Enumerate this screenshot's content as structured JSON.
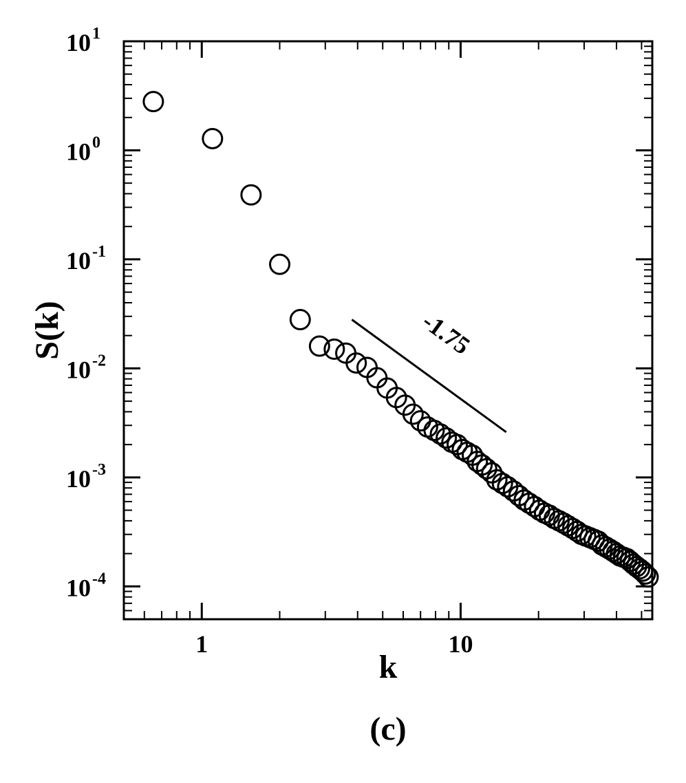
{
  "chart_data": {
    "type": "scatter",
    "xlabel": "k",
    "ylabel": "S(k)",
    "panel_label": "(c)",
    "xscale": "log",
    "yscale": "log",
    "xlim": [
      0.5,
      55
    ],
    "ylim": [
      5e-05,
      10
    ],
    "x_ticks": [
      {
        "value": 1,
        "label": "1"
      },
      {
        "value": 10,
        "label": "10"
      }
    ],
    "y_ticks": [
      {
        "value": 0.0001,
        "base": "10",
        "exp": "-4"
      },
      {
        "value": 0.001,
        "base": "10",
        "exp": "-3"
      },
      {
        "value": 0.01,
        "base": "10",
        "exp": "-2"
      },
      {
        "value": 0.1,
        "base": "10",
        "exp": "-1"
      },
      {
        "value": 1,
        "base": "10",
        "exp": "0"
      },
      {
        "value": 10,
        "base": "10",
        "exp": "1"
      }
    ],
    "grid": false,
    "marker": "open-circle",
    "reference_line": {
      "x": [
        3.8,
        15
      ],
      "y": [
        0.028,
        0.0026
      ],
      "label": "-1.75"
    },
    "series": [
      {
        "x": [
          0.65,
          1.1,
          1.55,
          2.0,
          2.4,
          2.85,
          3.25,
          3.6,
          3.95,
          4.35,
          4.75,
          5.2,
          5.65,
          6.1,
          6.55,
          7.0,
          7.45,
          7.9,
          8.35,
          8.8,
          9.25,
          9.7,
          10.15,
          10.6,
          11.1,
          11.6,
          12.1,
          12.6,
          13.2,
          13.8,
          14.5,
          15.2,
          16.0,
          16.8,
          17.6,
          18.4,
          19.3,
          20.2,
          21.1,
          22.0,
          23.0,
          24.0,
          25.0,
          26.0,
          27.1,
          28.2,
          29.3,
          30.4,
          31.6,
          32.8,
          34.0,
          35.2,
          36.4,
          37.6,
          38.8,
          40.0,
          41.3,
          42.6,
          43.9,
          45.2,
          46.5,
          47.8,
          49.1,
          50.4,
          51.7,
          53.0
        ],
        "y": [
          2.8,
          1.28,
          0.39,
          0.09,
          0.028,
          0.016,
          0.015,
          0.0138,
          0.0112,
          0.0102,
          0.0082,
          0.0066,
          0.0054,
          0.0046,
          0.0038,
          0.0033,
          0.0029,
          0.0027,
          0.0025,
          0.0023,
          0.0021,
          0.002,
          0.0018,
          0.0017,
          0.0016,
          0.0014,
          0.0013,
          0.0012,
          0.0011,
          0.00095,
          0.00088,
          0.00082,
          0.00075,
          0.00068,
          0.00062,
          0.00058,
          0.00054,
          0.0005,
          0.00047,
          0.00045,
          0.00042,
          0.0004,
          0.00038,
          0.00036,
          0.00034,
          0.00032,
          0.0003,
          0.00029,
          0.00028,
          0.00027,
          0.00026,
          0.00024,
          0.00023,
          0.00022,
          0.00021,
          0.0002,
          0.00019,
          0.000185,
          0.00018,
          0.00017,
          0.00016,
          0.000152,
          0.000145,
          0.000138,
          0.00013,
          0.000122
        ]
      }
    ]
  }
}
